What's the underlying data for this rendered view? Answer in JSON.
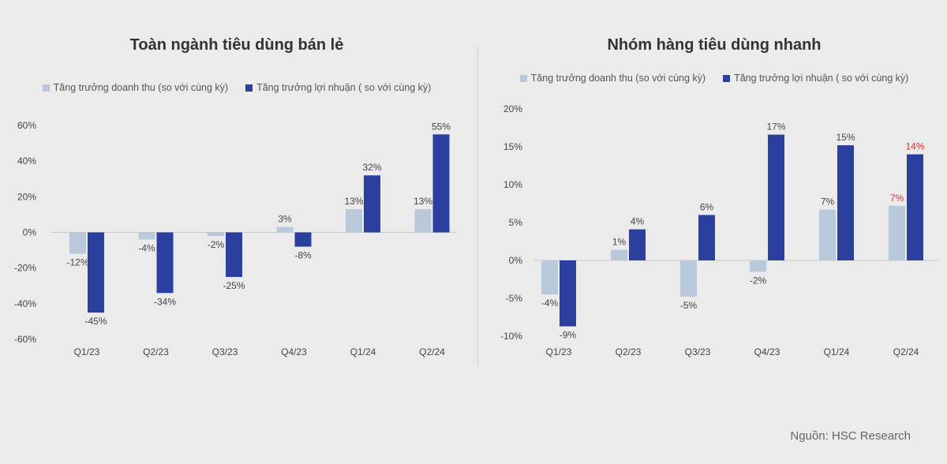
{
  "colors": {
    "revenue": "#b9c8da",
    "profit": "#2a3f9e",
    "highlight": "#d0342c",
    "label": "#444444",
    "axis": "#c8c8c8"
  },
  "source": "Nguồn: HSC Research",
  "chart_data": [
    {
      "type": "bar",
      "title": "Toàn ngành tiêu dùng bán lẻ",
      "categories": [
        "Q1/23",
        "Q2/23",
        "Q3/23",
        "Q4/23",
        "Q1/24",
        "Q2/24"
      ],
      "series": [
        {
          "name": "Tăng trưởng doanh thu (so với cùng kỳ)",
          "values": [
            -12,
            -4,
            -2,
            3,
            13,
            13
          ],
          "labels": [
            "-12%",
            "-4%",
            "-2%",
            "3%",
            "13%",
            "13%"
          ]
        },
        {
          "name": "Tăng trưởng lợi nhuận ( so với cùng kỳ)",
          "values": [
            -45,
            -34,
            -25,
            -8,
            32,
            55
          ],
          "labels": [
            "-45%",
            "-34%",
            "-25%",
            "-8%",
            "32%",
            "55%"
          ]
        }
      ],
      "yticks": [
        60,
        40,
        20,
        0,
        -20,
        -40,
        -60
      ],
      "ytick_labels": [
        "60%",
        "40%",
        "20%",
        "0%",
        "-20%",
        "-40%",
        "-60%"
      ],
      "ylim": [
        -60,
        60
      ],
      "legend": "top",
      "grid": false
    },
    {
      "type": "bar",
      "title": "Nhóm hàng tiêu dùng nhanh",
      "categories": [
        "Q1/23",
        "Q2/23",
        "Q3/23",
        "Q4/23",
        "Q1/24",
        "Q2/24"
      ],
      "series": [
        {
          "name": "Tăng trưởng doanh thu (so với cùng kỳ)",
          "values": [
            -4.5,
            1.4,
            -4.8,
            -1.5,
            6.7,
            7.2
          ],
          "labels": [
            "-4%",
            "1%",
            "-5%",
            "-2%",
            "7%",
            "7%"
          ],
          "highlight_labels": [
            5
          ]
        },
        {
          "name": "Tăng trưởng lợi nhuận ( so với cùng kỳ)",
          "values": [
            -8.7,
            4.1,
            6.0,
            16.6,
            15.2,
            14.0
          ],
          "labels": [
            "-9%",
            "4%",
            "6%",
            "17%",
            "15%",
            "14%"
          ],
          "highlight_labels": [
            5
          ]
        }
      ],
      "yticks": [
        20,
        15,
        10,
        5,
        0,
        -5,
        -10
      ],
      "ytick_labels": [
        "20%",
        "15%",
        "10%",
        "5%",
        "0%",
        "-5%",
        "-10%"
      ],
      "ylim": [
        -10,
        20
      ],
      "legend": "top",
      "grid": false
    }
  ]
}
